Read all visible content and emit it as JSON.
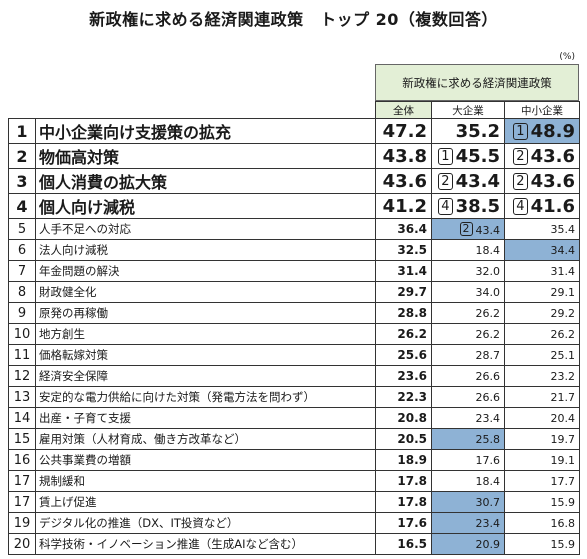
{
  "title": "新政権に求める経済関連政策　トップ 20（複数回答）",
  "unit": "(%)",
  "chart_data": {
    "type": "table",
    "group_header": "新政権に求める経済関連政策",
    "columns": [
      "全体",
      "大企業",
      "中小企業"
    ],
    "rows": [
      {
        "rank": "1",
        "item": "中小企業向け支援策の拡充",
        "values": [
          "47.2",
          "35.2",
          "48.9"
        ],
        "badges": [
          "",
          "",
          "1"
        ],
        "highlight": [
          false,
          false,
          true
        ]
      },
      {
        "rank": "2",
        "item": "物価高対策",
        "values": [
          "43.8",
          "45.5",
          "43.6"
        ],
        "badges": [
          "",
          "1",
          "2"
        ],
        "highlight": [
          false,
          false,
          false
        ]
      },
      {
        "rank": "3",
        "item": "個人消費の拡大策",
        "values": [
          "43.6",
          "43.4",
          "43.6"
        ],
        "badges": [
          "",
          "2",
          "2"
        ],
        "highlight": [
          false,
          false,
          false
        ]
      },
      {
        "rank": "4",
        "item": "個人向け減税",
        "values": [
          "41.2",
          "38.5",
          "41.6"
        ],
        "badges": [
          "",
          "4",
          "4"
        ],
        "highlight": [
          false,
          false,
          false
        ]
      },
      {
        "rank": "5",
        "item": "人手不足への対応",
        "values": [
          "36.4",
          "43.4",
          "35.4"
        ],
        "badges": [
          "",
          "2",
          ""
        ],
        "highlight": [
          false,
          true,
          false
        ]
      },
      {
        "rank": "6",
        "item": "法人向け減税",
        "values": [
          "32.5",
          "18.4",
          "34.4"
        ],
        "badges": [
          "",
          "",
          ""
        ],
        "highlight": [
          false,
          false,
          true
        ]
      },
      {
        "rank": "7",
        "item": "年金問題の解決",
        "values": [
          "31.4",
          "32.0",
          "31.4"
        ],
        "badges": [
          "",
          "",
          ""
        ],
        "highlight": [
          false,
          false,
          false
        ]
      },
      {
        "rank": "8",
        "item": "財政健全化",
        "values": [
          "29.7",
          "34.0",
          "29.1"
        ],
        "badges": [
          "",
          "",
          ""
        ],
        "highlight": [
          false,
          false,
          false
        ]
      },
      {
        "rank": "9",
        "item": "原発の再稼働",
        "values": [
          "28.8",
          "26.2",
          "29.2"
        ],
        "badges": [
          "",
          "",
          ""
        ],
        "highlight": [
          false,
          false,
          false
        ]
      },
      {
        "rank": "10",
        "item": "地方創生",
        "values": [
          "26.2",
          "26.2",
          "26.2"
        ],
        "badges": [
          "",
          "",
          ""
        ],
        "highlight": [
          false,
          false,
          false
        ]
      },
      {
        "rank": "11",
        "item": "価格転嫁対策",
        "values": [
          "25.6",
          "28.7",
          "25.1"
        ],
        "badges": [
          "",
          "",
          ""
        ],
        "highlight": [
          false,
          false,
          false
        ]
      },
      {
        "rank": "12",
        "item": "経済安全保障",
        "values": [
          "23.6",
          "26.6",
          "23.2"
        ],
        "badges": [
          "",
          "",
          ""
        ],
        "highlight": [
          false,
          false,
          false
        ]
      },
      {
        "rank": "13",
        "item": "安定的な電力供給に向けた対策（発電方法を問わず）",
        "values": [
          "22.3",
          "26.6",
          "21.7"
        ],
        "badges": [
          "",
          "",
          ""
        ],
        "highlight": [
          false,
          false,
          false
        ]
      },
      {
        "rank": "14",
        "item": "出産・子育て支援",
        "values": [
          "20.8",
          "23.4",
          "20.4"
        ],
        "badges": [
          "",
          "",
          ""
        ],
        "highlight": [
          false,
          false,
          false
        ]
      },
      {
        "rank": "15",
        "item": "雇用対策（人材育成、働き方改革など）",
        "values": [
          "20.5",
          "25.8",
          "19.7"
        ],
        "badges": [
          "",
          "",
          ""
        ],
        "highlight": [
          false,
          true,
          false
        ]
      },
      {
        "rank": "16",
        "item": "公共事業費の増額",
        "values": [
          "18.9",
          "17.6",
          "19.1"
        ],
        "badges": [
          "",
          "",
          ""
        ],
        "highlight": [
          false,
          false,
          false
        ]
      },
      {
        "rank": "17",
        "item": "規制緩和",
        "values": [
          "17.8",
          "18.4",
          "17.7"
        ],
        "badges": [
          "",
          "",
          ""
        ],
        "highlight": [
          false,
          false,
          false
        ]
      },
      {
        "rank": "17",
        "item": "賃上げ促進",
        "values": [
          "17.8",
          "30.7",
          "15.9"
        ],
        "badges": [
          "",
          "",
          ""
        ],
        "highlight": [
          false,
          true,
          false
        ]
      },
      {
        "rank": "19",
        "item": "デジタル化の推進（DX、IT投資など）",
        "values": [
          "17.6",
          "23.4",
          "16.8"
        ],
        "badges": [
          "",
          "",
          ""
        ],
        "highlight": [
          false,
          true,
          false
        ]
      },
      {
        "rank": "20",
        "item": "科学技術・イノベーション推進（生成AIなど含む）",
        "values": [
          "16.5",
          "20.9",
          "15.9"
        ],
        "badges": [
          "",
          "",
          ""
        ],
        "highlight": [
          false,
          true,
          false
        ]
      }
    ]
  }
}
